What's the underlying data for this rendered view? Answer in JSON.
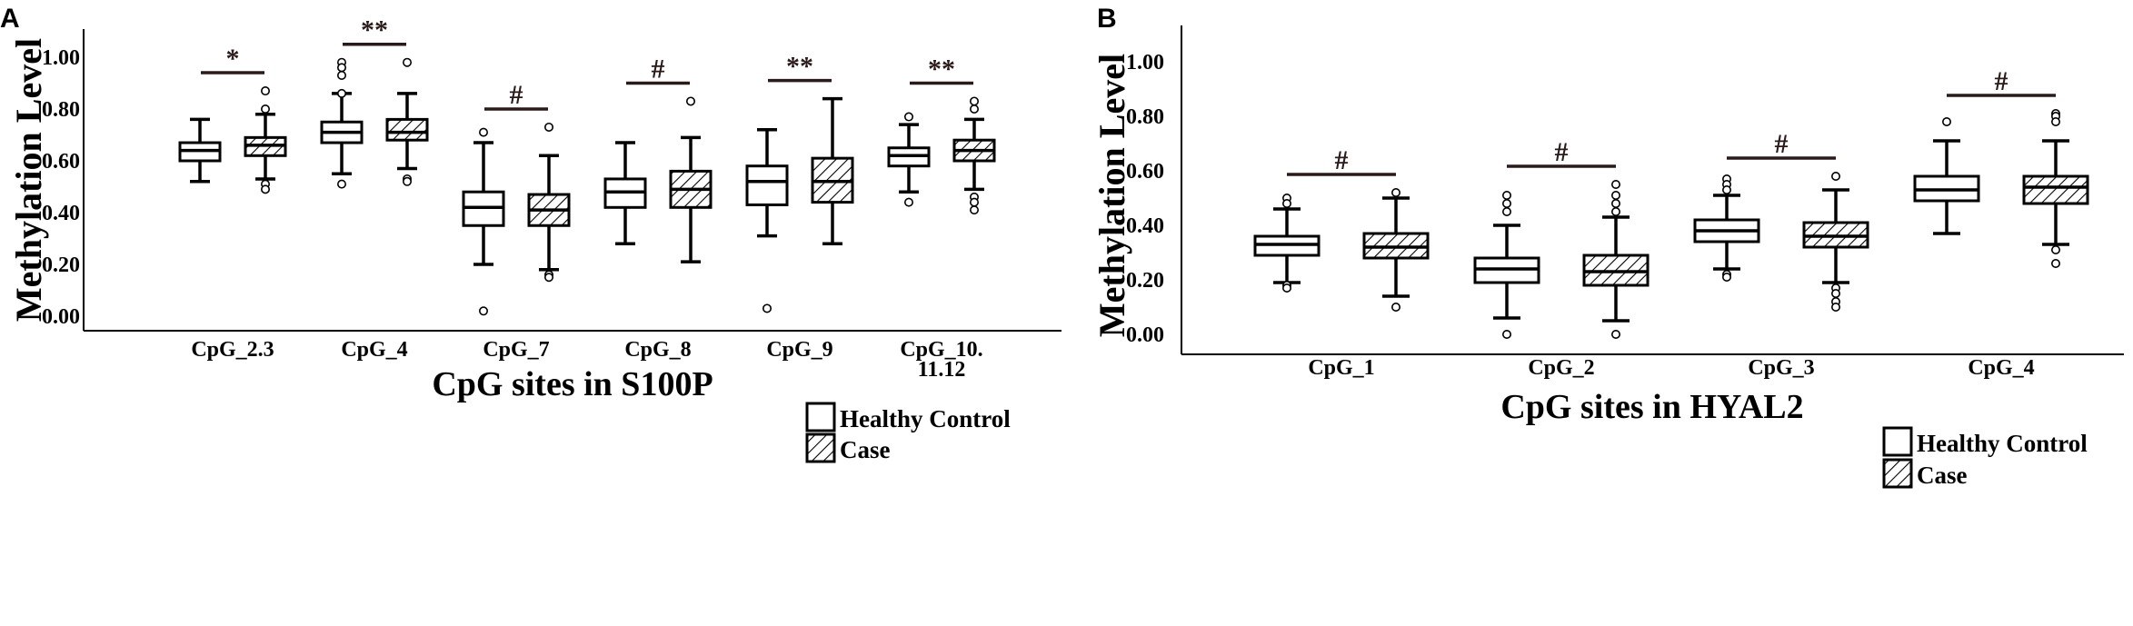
{
  "colors": {
    "ink": "#000000",
    "bg": "#ffffff",
    "sig": "#2a1a1a"
  },
  "chart_data": [
    {
      "panel_label": "A",
      "type": "box",
      "title": "",
      "xlabel": "CpG sites in S100P",
      "ylabel": "Methylation Level",
      "ylim": [
        -0.06,
        1.12
      ],
      "yticks": [
        "0.00",
        "0.20",
        "0.40",
        "0.60",
        "0.80",
        "1.00"
      ],
      "legend": {
        "position": "bottom-right",
        "entries": [
          "Healthy Control",
          "Case"
        ]
      },
      "categories": [
        {
          "label": [
            "CpG_2.3"
          ],
          "sig": "*",
          "control": {
            "whislo": 0.52,
            "q1": 0.6,
            "med": 0.64,
            "q3": 0.67,
            "whishi": 0.76,
            "outliers": []
          },
          "case": {
            "whislo": 0.53,
            "q1": 0.62,
            "med": 0.66,
            "q3": 0.69,
            "whishi": 0.78,
            "outliers": [
              0.87,
              0.8,
              0.51,
              0.49
            ]
          }
        },
        {
          "label": [
            "CpG_4"
          ],
          "sig": "**",
          "control": {
            "whislo": 0.55,
            "q1": 0.67,
            "med": 0.71,
            "q3": 0.75,
            "whishi": 0.86,
            "outliers": [
              0.98,
              0.96,
              0.93,
              0.86,
              0.51
            ]
          },
          "case": {
            "whislo": 0.57,
            "q1": 0.68,
            "med": 0.71,
            "q3": 0.76,
            "whishi": 0.86,
            "outliers": [
              0.98,
              0.53,
              0.52
            ]
          }
        },
        {
          "label": [
            "CpG_7"
          ],
          "sig": "#",
          "control": {
            "whislo": 0.2,
            "q1": 0.35,
            "med": 0.42,
            "q3": 0.48,
            "whishi": 0.67,
            "outliers": [
              0.71,
              0.02
            ]
          },
          "case": {
            "whislo": 0.18,
            "q1": 0.35,
            "med": 0.41,
            "q3": 0.47,
            "whishi": 0.62,
            "outliers": [
              0.73,
              0.16,
              0.15
            ]
          }
        },
        {
          "label": [
            "CpG_8"
          ],
          "sig": "#",
          "control": {
            "whislo": 0.28,
            "q1": 0.42,
            "med": 0.48,
            "q3": 0.53,
            "whishi": 0.67,
            "outliers": []
          },
          "case": {
            "whislo": 0.21,
            "q1": 0.42,
            "med": 0.49,
            "q3": 0.56,
            "whishi": 0.69,
            "outliers": [
              0.83
            ]
          }
        },
        {
          "label": [
            "CpG_9"
          ],
          "sig": "**",
          "control": {
            "whislo": 0.31,
            "q1": 0.43,
            "med": 0.52,
            "q3": 0.58,
            "whishi": 0.72,
            "outliers": [
              0.03
            ]
          },
          "case": {
            "whislo": 0.28,
            "q1": 0.44,
            "med": 0.52,
            "q3": 0.61,
            "whishi": 0.84,
            "outliers": []
          }
        },
        {
          "label": [
            "CpG_10.",
            "11.12"
          ],
          "sig": "**",
          "control": {
            "whislo": 0.48,
            "q1": 0.58,
            "med": 0.62,
            "q3": 0.65,
            "whishi": 0.74,
            "outliers": [
              0.77,
              0.44
            ]
          },
          "case": {
            "whislo": 0.49,
            "q1": 0.6,
            "med": 0.64,
            "q3": 0.68,
            "whishi": 0.76,
            "outliers": [
              0.83,
              0.8,
              0.46,
              0.44,
              0.41
            ]
          }
        }
      ]
    },
    {
      "panel_label": "B",
      "type": "box",
      "title": "",
      "xlabel": "CpG sites in HYAL2",
      "ylabel": "Methylation Level",
      "ylim": [
        -0.04,
        1.13
      ],
      "yticks": [
        "0.00",
        "0.20",
        "0.40",
        "0.60",
        "0.80",
        "1.00"
      ],
      "legend": {
        "position": "bottom-right",
        "entries": [
          "Healthy Control",
          "Case"
        ]
      },
      "categories": [
        {
          "label": [
            "CpG_1"
          ],
          "sig": "#",
          "control": {
            "whislo": 0.19,
            "q1": 0.29,
            "med": 0.33,
            "q3": 0.36,
            "whishi": 0.46,
            "outliers": [
              0.5,
              0.48,
              0.18,
              0.17
            ]
          },
          "case": {
            "whislo": 0.14,
            "q1": 0.28,
            "med": 0.32,
            "q3": 0.37,
            "whishi": 0.5,
            "outliers": [
              0.52,
              0.1
            ]
          }
        },
        {
          "label": [
            "CpG_2"
          ],
          "sig": "#",
          "control": {
            "whislo": 0.06,
            "q1": 0.19,
            "med": 0.24,
            "q3": 0.28,
            "whishi": 0.4,
            "outliers": [
              0.51,
              0.48,
              0.45,
              0.0
            ]
          },
          "case": {
            "whislo": 0.05,
            "q1": 0.18,
            "med": 0.23,
            "q3": 0.29,
            "whishi": 0.43,
            "outliers": [
              0.55,
              0.51,
              0.48,
              0.45,
              0.0
            ]
          }
        },
        {
          "label": [
            "CpG_3"
          ],
          "sig": "#",
          "control": {
            "whislo": 0.24,
            "q1": 0.34,
            "med": 0.38,
            "q3": 0.42,
            "whishi": 0.51,
            "outliers": [
              0.57,
              0.55,
              0.53,
              0.22,
              0.21
            ]
          },
          "case": {
            "whislo": 0.19,
            "q1": 0.32,
            "med": 0.36,
            "q3": 0.41,
            "whishi": 0.53,
            "outliers": [
              0.58,
              0.17,
              0.15,
              0.12,
              0.1
            ]
          }
        },
        {
          "label": [
            "CpG_4"
          ],
          "sig": "#",
          "control": {
            "whislo": 0.37,
            "q1": 0.49,
            "med": 0.53,
            "q3": 0.58,
            "whishi": 0.71,
            "outliers": [
              0.78
            ]
          },
          "case": {
            "whislo": 0.33,
            "q1": 0.48,
            "med": 0.54,
            "q3": 0.58,
            "whishi": 0.71,
            "outliers": [
              0.81,
              0.8,
              0.78,
              0.31,
              0.26
            ]
          }
        }
      ]
    }
  ]
}
